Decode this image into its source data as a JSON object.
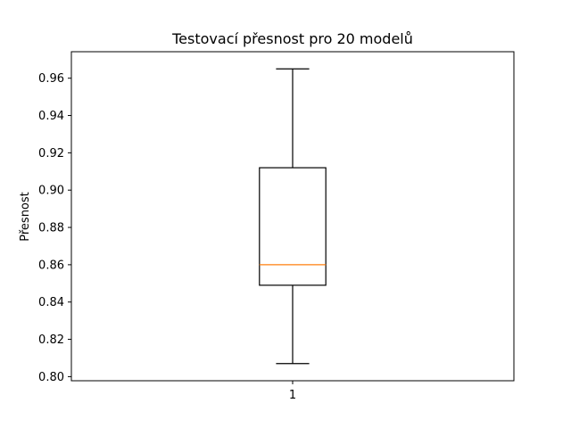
{
  "chart_data": {
    "type": "box",
    "title": "Testovací přesnost pro 20 modelů",
    "xlabel": "",
    "ylabel": "Přesnost",
    "categories": [
      "1"
    ],
    "boxes": [
      {
        "label": "1",
        "whisker_low": 0.807,
        "q1": 0.849,
        "median": 0.86,
        "q3": 0.912,
        "whisker_high": 0.965
      }
    ],
    "ylim": [
      0.7978,
      0.9742
    ],
    "yticks": [
      "0.80",
      "0.82",
      "0.84",
      "0.86",
      "0.88",
      "0.90",
      "0.92",
      "0.94",
      "0.96"
    ],
    "grid": false,
    "legend": "none",
    "colors": {
      "box": "#000000",
      "median": "#ff7f0e",
      "background": "#ffffff"
    }
  }
}
